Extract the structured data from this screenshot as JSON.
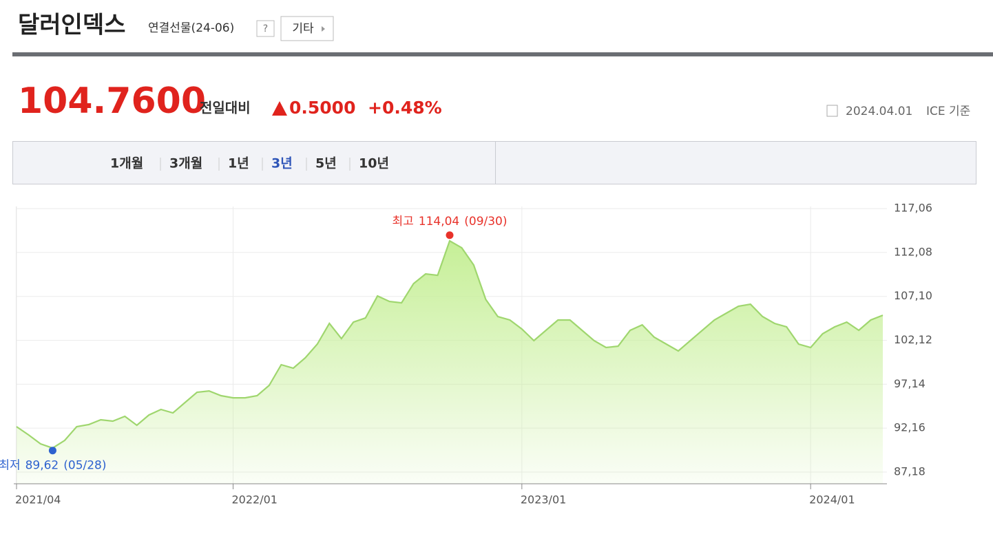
{
  "page": {
    "title": "달러인덱스",
    "subtitle": "연결선물(24-06)",
    "help": "?",
    "more": "기타",
    "price": "104.7600",
    "change_label": "전일대비",
    "change": "0.5000",
    "change_pct": "+0.48%",
    "date": "2024.04.01",
    "source": "ICE 기준",
    "tabs": [
      "1개월",
      "3개월",
      "1년",
      "3년",
      "5년",
      "10년"
    ],
    "active_tab": 3
  },
  "chart_data": {
    "type": "area",
    "categories": [
      "2021/04",
      null,
      null,
      null,
      null,
      null,
      null,
      null,
      null,
      null,
      null,
      null,
      null,
      null,
      null,
      null,
      null,
      null,
      "2022/01",
      null,
      null,
      null,
      null,
      null,
      null,
      null,
      null,
      null,
      null,
      null,
      null,
      null,
      null,
      null,
      null,
      null,
      null,
      null,
      null,
      null,
      null,
      null,
      "2023/01",
      null,
      null,
      null,
      null,
      null,
      null,
      null,
      null,
      null,
      null,
      null,
      null,
      null,
      null,
      null,
      null,
      null,
      null,
      null,
      null,
      null,
      null,
      null,
      "2024/01",
      null,
      null,
      null,
      null,
      null,
      null
    ],
    "values": [
      92.33,
      91.39,
      90.38,
      89.9,
      90.77,
      92.33,
      92.56,
      93.11,
      92.95,
      93.5,
      92.48,
      93.65,
      94.28,
      93.89,
      95.06,
      96.23,
      96.38,
      95.84,
      95.6,
      95.6,
      95.84,
      97.01,
      99.35,
      98.96,
      100.13,
      101.69,
      104.03,
      102.31,
      104.18,
      104.65,
      107.15,
      106.52,
      106.37,
      108.55,
      109.65,
      109.49,
      113.4,
      112.61,
      110.66,
      106.76,
      104.81,
      104.42,
      103.4,
      102.08,
      103.25,
      104.42,
      104.42,
      103.25,
      102.08,
      101.3,
      101.45,
      103.25,
      103.87,
      102.47,
      101.69,
      100.91,
      102.08,
      103.25,
      104.42,
      105.2,
      105.98,
      106.21,
      104.81,
      104.03,
      103.64,
      101.69,
      101.3,
      102.86,
      103.64,
      104.18,
      103.25,
      104.42,
      104.96
    ],
    "color": "#9fd66e",
    "ylim": [
      85.85,
      117.3
    ],
    "yticks": [
      {
        "value": 87.18,
        "label": "87,18"
      },
      {
        "value": 92.16,
        "label": "92,16"
      },
      {
        "value": 97.14,
        "label": "97,14"
      },
      {
        "value": 102.12,
        "label": "102,12"
      },
      {
        "value": 107.1,
        "label": "107,10"
      },
      {
        "value": 112.08,
        "label": "112,08"
      },
      {
        "value": 117.06,
        "label": "117,06"
      }
    ],
    "grid": true,
    "annotations": {
      "max": {
        "label": "최고",
        "value": 114.04,
        "value_label": "114,04",
        "date": "(09/30)",
        "index": 36,
        "color": "#e8322a"
      },
      "min": {
        "label": "최저",
        "value": 89.62,
        "value_label": "89,62",
        "date": "(05/28)",
        "index": 3,
        "color": "#2e62cf"
      }
    }
  }
}
